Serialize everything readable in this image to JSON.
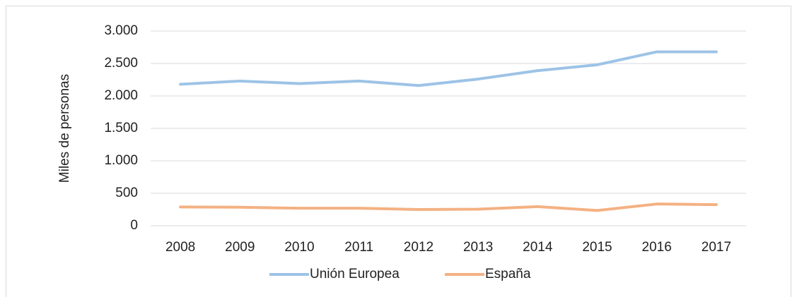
{
  "chart_data": {
    "type": "line",
    "y_label": "Miles de personas",
    "categories": [
      "2008",
      "2009",
      "2010",
      "2011",
      "2012",
      "2013",
      "2014",
      "2015",
      "2016",
      "2017"
    ],
    "series": [
      {
        "name": "Unión Europea",
        "color": "#9dc3e6",
        "values": [
          2180,
          2230,
          2190,
          2230,
          2160,
          2260,
          2390,
          2480,
          2680,
          2680
        ]
      },
      {
        "name": "España",
        "color": "#f4b183",
        "values": [
          290,
          285,
          270,
          270,
          250,
          255,
          295,
          235,
          335,
          325
        ]
      }
    ],
    "ylim": [
      0,
      3000
    ],
    "yticks": [
      0,
      500,
      {
        "value": 1000,
        "label": "1.000"
      },
      {
        "value": 1500,
        "label": "1.500"
      },
      {
        "value": 2000,
        "label": "2.000"
      },
      {
        "value": 2500,
        "label": "2.500"
      },
      {
        "value": 3000,
        "label": "3.000"
      }
    ],
    "grid": true,
    "legend": "bottom"
  }
}
